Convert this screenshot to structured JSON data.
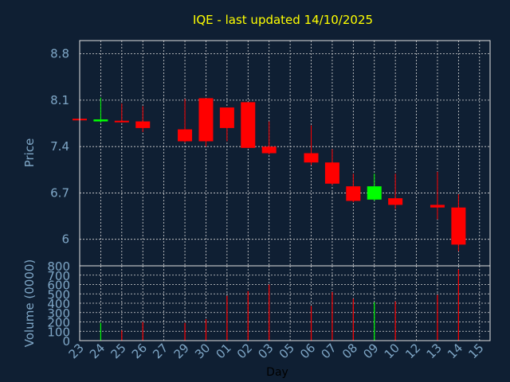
{
  "chart_data": [
    {
      "type": "candlestick",
      "title": "IQE - last updated 14/10/2025",
      "ylabel": "Price",
      "ylim": [
        5.6,
        9.0
      ],
      "yticks": [
        "8.8",
        "8.1",
        "7.4",
        "6.7",
        "6"
      ],
      "grid": true,
      "categories": [
        "23",
        "24",
        "25",
        "26",
        "27",
        "29",
        "30",
        "01",
        "02",
        "03",
        "05",
        "06",
        "07",
        "08",
        "09",
        "10",
        "12",
        "13",
        "14",
        "15"
      ],
      "candles": [
        {
          "day": "23",
          "open": 7.82,
          "close": 7.8,
          "high": 7.82,
          "low": 7.8,
          "color": "#ff0000"
        },
        {
          "day": "24",
          "open": 7.78,
          "close": 7.81,
          "high": 8.14,
          "low": 7.76,
          "color": "#00ff00"
        },
        {
          "day": "25",
          "open": 7.79,
          "close": 7.77,
          "high": 8.05,
          "low": 7.76,
          "color": "#ff0000"
        },
        {
          "day": "26",
          "open": 7.78,
          "close": 7.68,
          "high": 8.01,
          "low": 7.62,
          "color": "#ff0000"
        },
        {
          "day": "29",
          "open": 7.66,
          "close": 7.48,
          "high": 8.12,
          "low": 7.46,
          "color": "#ff0000"
        },
        {
          "day": "30",
          "open": 8.13,
          "close": 7.48,
          "high": 8.13,
          "low": 7.4,
          "color": "#ff0000"
        },
        {
          "day": "01",
          "open": 7.99,
          "close": 7.68,
          "high": 7.99,
          "low": 7.48,
          "color": "#ff0000"
        },
        {
          "day": "02",
          "open": 8.07,
          "close": 7.38,
          "high": 8.07,
          "low": 7.38,
          "color": "#ff0000"
        },
        {
          "day": "03",
          "open": 7.4,
          "close": 7.3,
          "high": 7.78,
          "low": 7.28,
          "color": "#ff0000"
        },
        {
          "day": "06",
          "open": 7.3,
          "close": 7.16,
          "high": 7.72,
          "low": 7.12,
          "color": "#ff0000"
        },
        {
          "day": "07",
          "open": 7.16,
          "close": 6.84,
          "high": 7.36,
          "low": 6.82,
          "color": "#ff0000"
        },
        {
          "day": "08",
          "open": 6.8,
          "close": 6.58,
          "high": 6.99,
          "low": 6.56,
          "color": "#ff0000"
        },
        {
          "day": "09",
          "open": 6.6,
          "close": 6.8,
          "high": 6.99,
          "low": 6.58,
          "color": "#00ff00"
        },
        {
          "day": "10",
          "open": 6.62,
          "close": 6.52,
          "high": 6.99,
          "low": 6.46,
          "color": "#ff0000"
        },
        {
          "day": "13",
          "open": 6.52,
          "close": 6.48,
          "high": 7.02,
          "low": 6.3,
          "color": "#ff0000"
        },
        {
          "day": "14",
          "open": 6.48,
          "close": 5.92,
          "high": 6.68,
          "low": 5.82,
          "color": "#ff0000"
        }
      ]
    },
    {
      "type": "bar",
      "ylabel": "Volume (0000)",
      "xlabel": "Day",
      "ylim": [
        0,
        800
      ],
      "yticks": [
        "800",
        "700",
        "600",
        "500",
        "400",
        "300",
        "200",
        "100",
        "0"
      ],
      "grid": true,
      "categories": [
        "23",
        "24",
        "25",
        "26",
        "27",
        "29",
        "30",
        "01",
        "02",
        "03",
        "05",
        "06",
        "07",
        "08",
        "09",
        "10",
        "12",
        "13",
        "14",
        "15"
      ],
      "bars": [
        {
          "day": "24",
          "value": 190,
          "color": "#00ff00"
        },
        {
          "day": "25",
          "value": 110,
          "color": "#ff0000"
        },
        {
          "day": "26",
          "value": 200,
          "color": "#ff0000"
        },
        {
          "day": "29",
          "value": 190,
          "color": "#ff0000"
        },
        {
          "day": "30",
          "value": 230,
          "color": "#ff0000"
        },
        {
          "day": "01",
          "value": 480,
          "color": "#ff0000"
        },
        {
          "day": "02",
          "value": 530,
          "color": "#ff0000"
        },
        {
          "day": "03",
          "value": 600,
          "color": "#ff0000"
        },
        {
          "day": "06",
          "value": 370,
          "color": "#ff0000"
        },
        {
          "day": "07",
          "value": 520,
          "color": "#ff0000"
        },
        {
          "day": "08",
          "value": 450,
          "color": "#ff0000"
        },
        {
          "day": "09",
          "value": 410,
          "color": "#00ff00"
        },
        {
          "day": "10",
          "value": 420,
          "color": "#ff0000"
        },
        {
          "day": "13",
          "value": 490,
          "color": "#ff0000"
        },
        {
          "day": "14",
          "value": 760,
          "color": "#ff0000"
        }
      ]
    }
  ]
}
